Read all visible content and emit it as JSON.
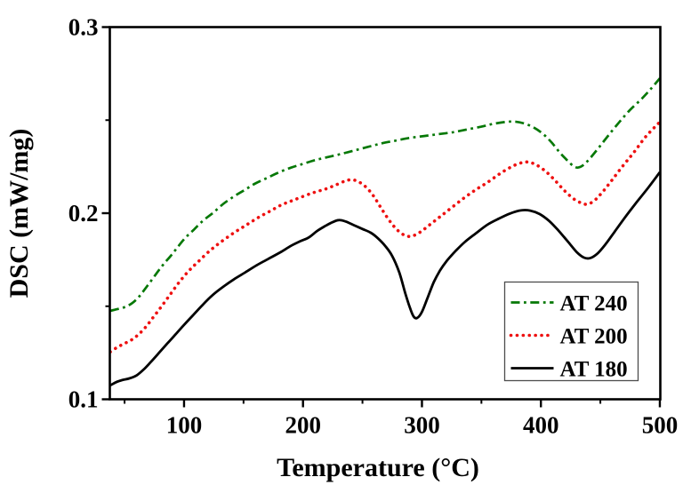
{
  "figure": {
    "background": "#ffffff"
  },
  "chart_data": {
    "type": "line",
    "title": "",
    "xlabel": "Temperature (°C)",
    "ylabel": "DSC (mW/mg)",
    "x_range": [
      37.6,
      500.4
    ],
    "y_range": [
      0.1,
      0.3
    ],
    "x_ticks": {
      "major": [
        100,
        200,
        300,
        400,
        500
      ],
      "minor": [
        50,
        150,
        250,
        350,
        450
      ],
      "labels": [
        "100",
        "200",
        "300",
        "400",
        "500"
      ]
    },
    "y_ticks": {
      "major": [
        0.1,
        0.2,
        0.3
      ],
      "minor": [
        0.15,
        0.25
      ],
      "labels": [
        "0.1",
        "0.2",
        "0.3"
      ]
    },
    "grid": false,
    "frame": true,
    "axis_color": "#000000",
    "legend": {
      "position": "inside-bottom-right",
      "entries": [
        {
          "label": "AT 240",
          "color": "#067806",
          "style": "dash-dot"
        },
        {
          "label": "AT 200",
          "color": "#ee1111",
          "style": "dotted"
        },
        {
          "label": "AT 180",
          "color": "#000000",
          "style": "solid"
        }
      ]
    },
    "series": [
      {
        "name": "AT 240",
        "color": "#067806",
        "style": "dash-dot",
        "width": 2.7,
        "points": [
          [
            38,
            0.1475
          ],
          [
            44,
            0.1485
          ],
          [
            50,
            0.1495
          ],
          [
            56,
            0.1515
          ],
          [
            62,
            0.155
          ],
          [
            68,
            0.16
          ],
          [
            75,
            0.166
          ],
          [
            82,
            0.172
          ],
          [
            90,
            0.178
          ],
          [
            100,
            0.186
          ],
          [
            108,
            0.191
          ],
          [
            116,
            0.196
          ],
          [
            124,
            0.2
          ],
          [
            133,
            0.205
          ],
          [
            142,
            0.209
          ],
          [
            151,
            0.2125
          ],
          [
            160,
            0.216
          ],
          [
            170,
            0.219
          ],
          [
            180,
            0.222
          ],
          [
            190,
            0.2245
          ],
          [
            200,
            0.2265
          ],
          [
            210,
            0.2285
          ],
          [
            220,
            0.23
          ],
          [
            230,
            0.2315
          ],
          [
            242,
            0.2335
          ],
          [
            254,
            0.2355
          ],
          [
            266,
            0.2375
          ],
          [
            278,
            0.239
          ],
          [
            290,
            0.2405
          ],
          [
            302,
            0.2415
          ],
          [
            314,
            0.2425
          ],
          [
            326,
            0.2435
          ],
          [
            338,
            0.245
          ],
          [
            350,
            0.2465
          ],
          [
            360,
            0.248
          ],
          [
            370,
            0.249
          ],
          [
            378,
            0.2492
          ],
          [
            386,
            0.2482
          ],
          [
            394,
            0.246
          ],
          [
            402,
            0.2425
          ],
          [
            409,
            0.238
          ],
          [
            416,
            0.2325
          ],
          [
            422,
            0.2285
          ],
          [
            427,
            0.2255
          ],
          [
            431,
            0.2245
          ],
          [
            436,
            0.226
          ],
          [
            442,
            0.23
          ],
          [
            449,
            0.2355
          ],
          [
            457,
            0.242
          ],
          [
            466,
            0.249
          ],
          [
            475,
            0.2555
          ],
          [
            484,
            0.261
          ],
          [
            492,
            0.2665
          ],
          [
            500,
            0.2725
          ]
        ]
      },
      {
        "name": "AT 200",
        "color": "#ee1111",
        "style": "dotted",
        "width": 3.6,
        "points": [
          [
            38,
            0.1255
          ],
          [
            44,
            0.128
          ],
          [
            50,
            0.13
          ],
          [
            56,
            0.132
          ],
          [
            62,
            0.135
          ],
          [
            68,
            0.139
          ],
          [
            74,
            0.144
          ],
          [
            80,
            0.149
          ],
          [
            88,
            0.156
          ],
          [
            96,
            0.163
          ],
          [
            104,
            0.169
          ],
          [
            112,
            0.174
          ],
          [
            122,
            0.18
          ],
          [
            132,
            0.185
          ],
          [
            142,
            0.1895
          ],
          [
            152,
            0.1935
          ],
          [
            162,
            0.1975
          ],
          [
            172,
            0.201
          ],
          [
            182,
            0.2045
          ],
          [
            192,
            0.207
          ],
          [
            202,
            0.2095
          ],
          [
            211,
            0.2115
          ],
          [
            219,
            0.213
          ],
          [
            227,
            0.215
          ],
          [
            235,
            0.2172
          ],
          [
            241,
            0.218
          ],
          [
            247,
            0.2168
          ],
          [
            253,
            0.214
          ],
          [
            259,
            0.2095
          ],
          [
            265,
            0.2035
          ],
          [
            271,
            0.1975
          ],
          [
            277,
            0.1925
          ],
          [
            283,
            0.189
          ],
          [
            289,
            0.1875
          ],
          [
            295,
            0.1885
          ],
          [
            301,
            0.191
          ],
          [
            308,
            0.1945
          ],
          [
            316,
            0.1985
          ],
          [
            325,
            0.203
          ],
          [
            335,
            0.208
          ],
          [
            345,
            0.2125
          ],
          [
            355,
            0.2165
          ],
          [
            365,
            0.221
          ],
          [
            374,
            0.2245
          ],
          [
            382,
            0.2268
          ],
          [
            389,
            0.2275
          ],
          [
            396,
            0.226
          ],
          [
            404,
            0.2225
          ],
          [
            412,
            0.2175
          ],
          [
            420,
            0.212
          ],
          [
            428,
            0.2075
          ],
          [
            434,
            0.2055
          ],
          [
            439,
            0.2048
          ],
          [
            445,
            0.2068
          ],
          [
            452,
            0.2115
          ],
          [
            460,
            0.218
          ],
          [
            469,
            0.2255
          ],
          [
            478,
            0.2325
          ],
          [
            488,
            0.241
          ],
          [
            500,
            0.249
          ]
        ]
      },
      {
        "name": "AT 180",
        "color": "#000000",
        "style": "solid",
        "width": 2.8,
        "points": [
          [
            38,
            0.1075
          ],
          [
            43,
            0.1092
          ],
          [
            48,
            0.1103
          ],
          [
            54,
            0.1112
          ],
          [
            60,
            0.1128
          ],
          [
            66,
            0.116
          ],
          [
            72,
            0.12
          ],
          [
            79,
            0.125
          ],
          [
            86,
            0.13
          ],
          [
            93,
            0.135
          ],
          [
            100,
            0.14
          ],
          [
            108,
            0.1455
          ],
          [
            116,
            0.151
          ],
          [
            124,
            0.156
          ],
          [
            133,
            0.1605
          ],
          [
            142,
            0.1645
          ],
          [
            151,
            0.168
          ],
          [
            161,
            0.172
          ],
          [
            171,
            0.1755
          ],
          [
            181,
            0.179
          ],
          [
            190,
            0.1825
          ],
          [
            198,
            0.185
          ],
          [
            205,
            0.187
          ],
          [
            212,
            0.1905
          ],
          [
            219,
            0.1932
          ],
          [
            225,
            0.1952
          ],
          [
            230,
            0.1963
          ],
          [
            236,
            0.1955
          ],
          [
            243,
            0.1935
          ],
          [
            250,
            0.1915
          ],
          [
            257,
            0.1895
          ],
          [
            263,
            0.1865
          ],
          [
            269,
            0.1825
          ],
          [
            275,
            0.177
          ],
          [
            281,
            0.168
          ],
          [
            286,
            0.157
          ],
          [
            290,
            0.149
          ],
          [
            293,
            0.1445
          ],
          [
            296,
            0.1437
          ],
          [
            300,
            0.147
          ],
          [
            305,
            0.155
          ],
          [
            310,
            0.163
          ],
          [
            315,
            0.169
          ],
          [
            321,
            0.1745
          ],
          [
            328,
            0.1795
          ],
          [
            336,
            0.1845
          ],
          [
            345,
            0.189
          ],
          [
            355,
            0.1938
          ],
          [
            365,
            0.1972
          ],
          [
            374,
            0.1998
          ],
          [
            383,
            0.2015
          ],
          [
            391,
            0.2014
          ],
          [
            399,
            0.1995
          ],
          [
            407,
            0.1958
          ],
          [
            415,
            0.1905
          ],
          [
            423,
            0.1845
          ],
          [
            430,
            0.1792
          ],
          [
            436,
            0.1762
          ],
          [
            441,
            0.1758
          ],
          [
            447,
            0.178
          ],
          [
            454,
            0.183
          ],
          [
            462,
            0.19
          ],
          [
            471,
            0.198
          ],
          [
            480,
            0.2055
          ],
          [
            490,
            0.2135
          ],
          [
            500,
            0.222
          ]
        ]
      }
    ]
  }
}
